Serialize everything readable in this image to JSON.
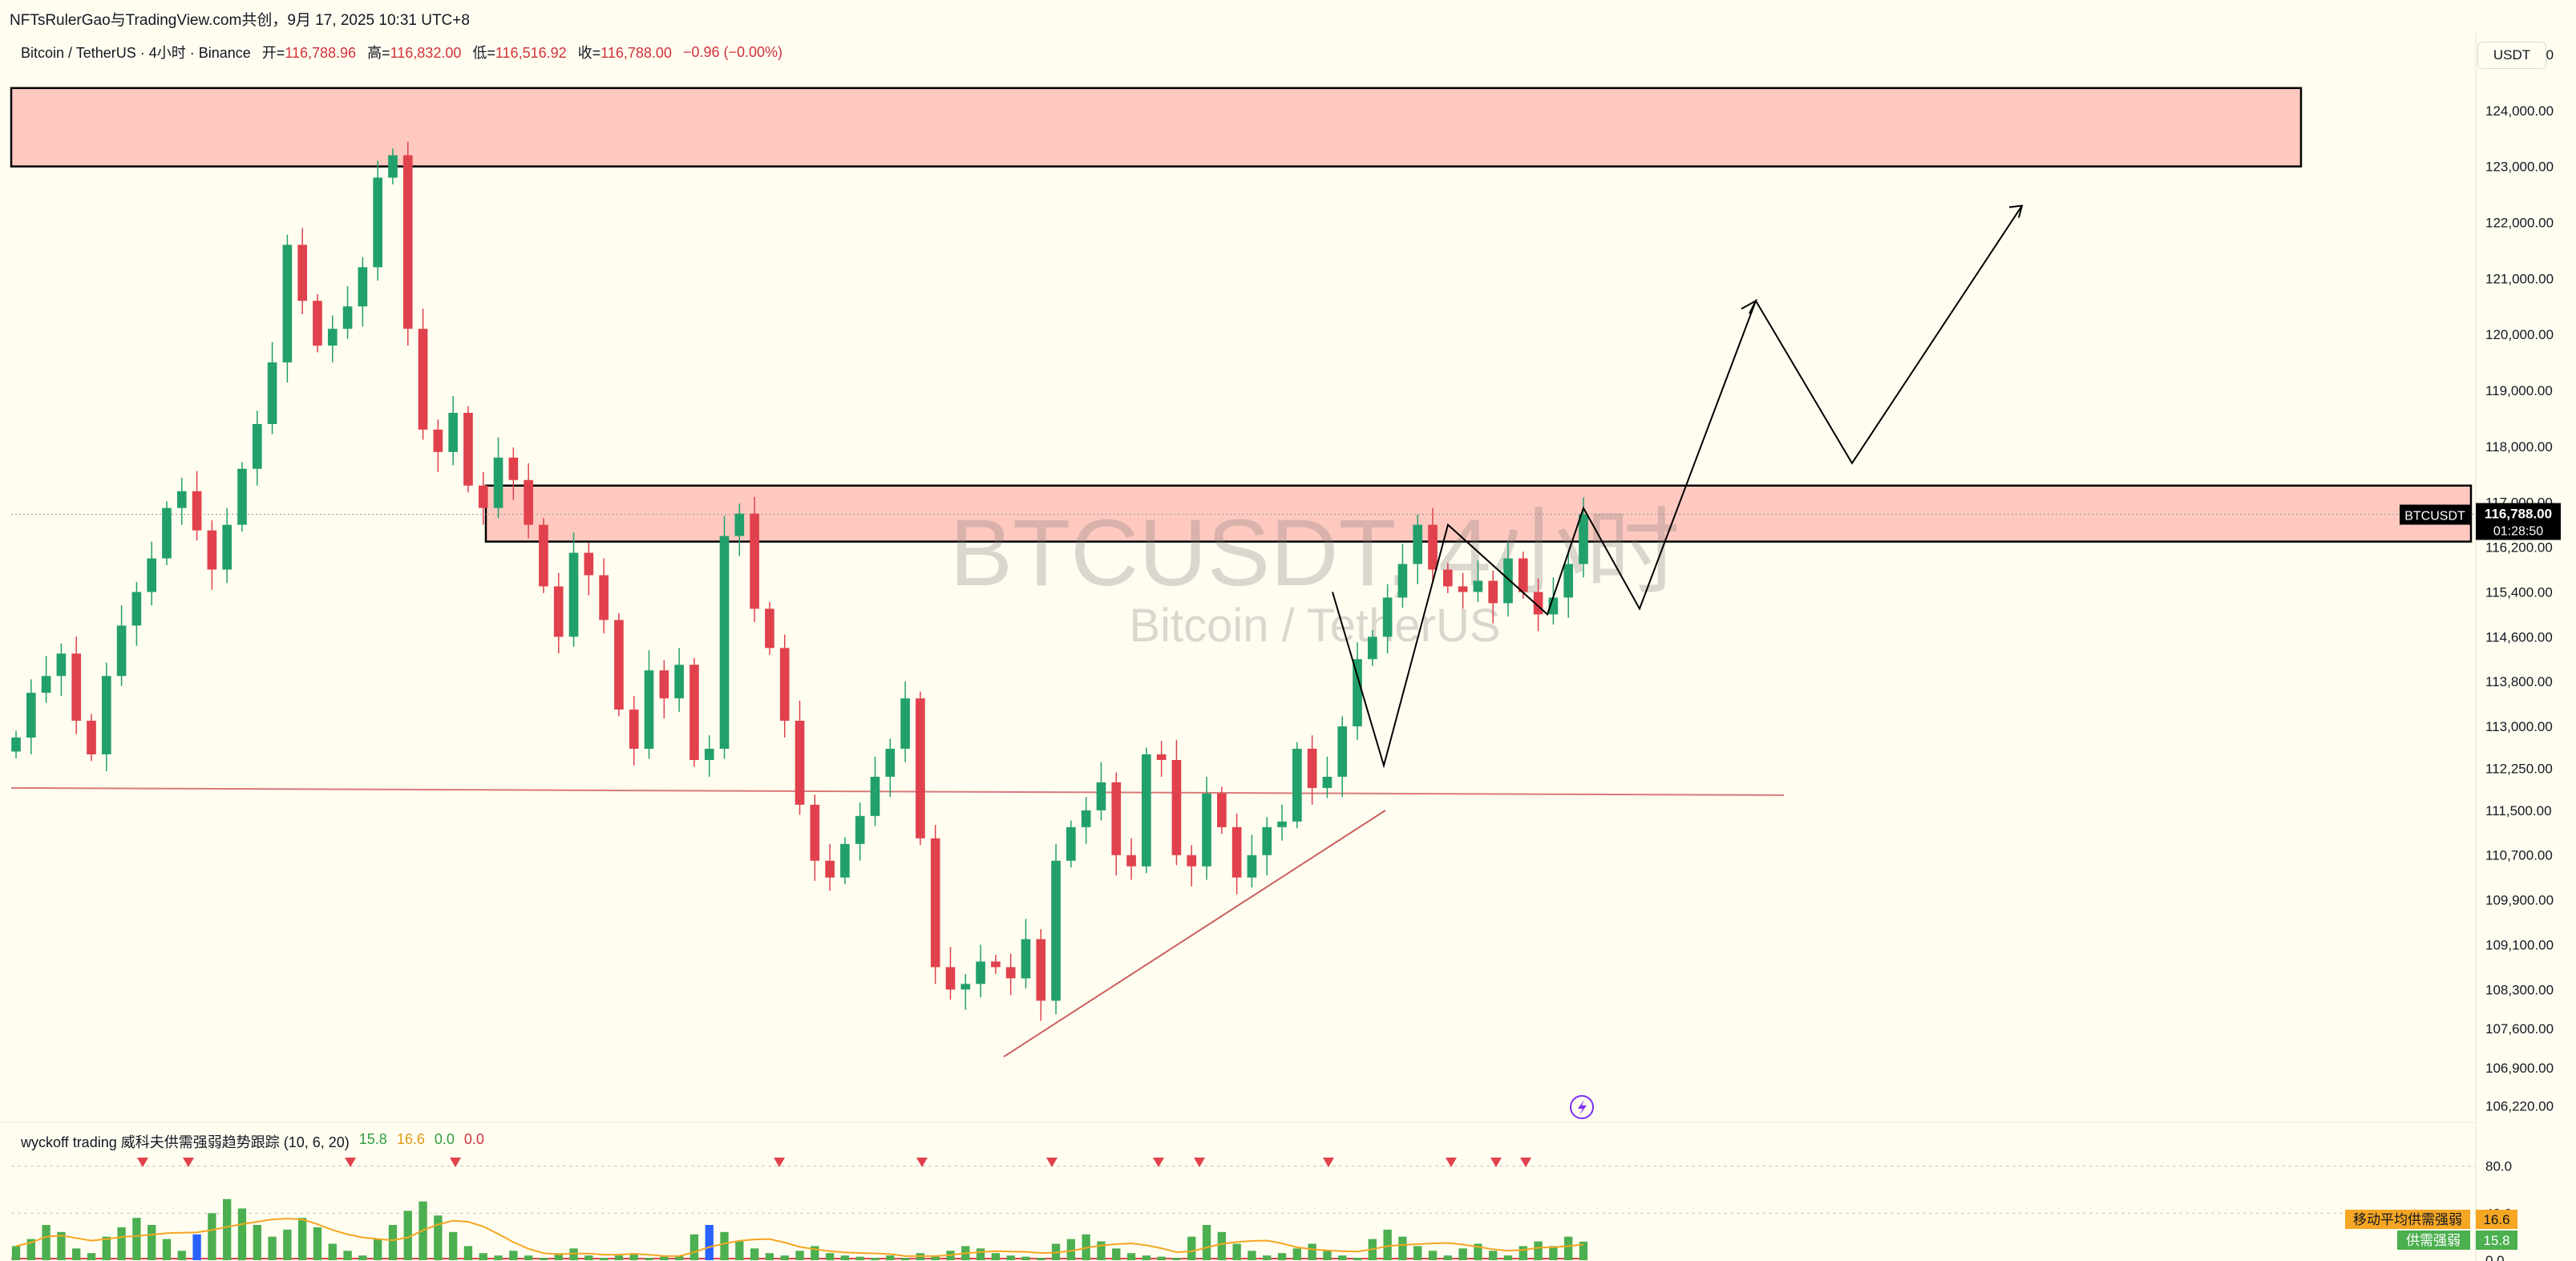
{
  "header": {
    "share_line": "NFTsRulerGao与TradingView.com共创，9月 17, 2025 10:31 UTC+8"
  },
  "legend": {
    "symbol": "Bitcoin / TetherUS · 4小时 · Binance",
    "open_label": "开=",
    "open": "116,788.96",
    "high_label": "高=",
    "high": "116,832.00",
    "low_label": "低=",
    "low": "116,516.92",
    "close_label": "收=",
    "close": "116,788.00",
    "change": "−0.96 (−0.00%)"
  },
  "currency": "USDT",
  "watermark": {
    "ticker": "BTCUSDT, 4小时",
    "name": "Bitcoin / TetherUS"
  },
  "price_badge": {
    "symbol": "BTCUSDT",
    "price": "116,788.00",
    "countdown": "01:28:50"
  },
  "colors": {
    "up": "#22a06b",
    "down": "#e0414c",
    "zone_fill": "#ffc9c0",
    "background": "#fffdf0",
    "volume_bar": "#4caf50",
    "highlight_bar": "#2962ff",
    "ma_line": "#f5a623"
  },
  "indicator": {
    "name": "wyckoff trading 威科夫供需强弱趋势跟踪 (10, 6, 20)",
    "v1": "15.8",
    "v2": "16.6",
    "v3": "0.0",
    "v4": "0.0",
    "badge_ma_label": "移动平均供需强弱",
    "badge_ma_value": "16.6",
    "badge_label": "供需强弱",
    "badge_value": "15.8",
    "axis_ticks": [
      "80.0",
      "40.0",
      "0.0"
    ]
  },
  "chart_data": {
    "type": "line",
    "title": "",
    "xlabel": "",
    "ylabel": "USDT",
    "y_axis_ticks": [
      "125,000.00",
      "124,000.00",
      "123,000.00",
      "122,000.00",
      "121,000.00",
      "120,000.00",
      "119,000.00",
      "118,000.00",
      "117,000.00",
      "116,200.00",
      "115,400.00",
      "114,600.00",
      "113,800.00",
      "113,000.00",
      "112,250.00",
      "111,500.00",
      "110,700.00",
      "109,900.00",
      "109,100.00",
      "108,300.00",
      "107,600.00",
      "106,900.00",
      "106,220.00"
    ],
    "ylim": [
      106000,
      125400
    ],
    "last_price": 116788,
    "series": [
      {
        "close": [
          112800,
          113600,
          113900,
          114300,
          113100,
          112500,
          113900,
          114800,
          115400,
          116000,
          116900,
          117200,
          116500,
          115800,
          116600,
          117600,
          118400,
          119500,
          121600,
          120600,
          119800,
          120100,
          120500,
          121200,
          122800,
          123200,
          120100,
          118300,
          117900,
          118600,
          117300,
          116900,
          117800,
          117400,
          116600,
          115500,
          114600,
          116100,
          115700,
          114900,
          113300,
          112600,
          114000,
          113500,
          114100,
          112400,
          112600,
          116400,
          116800,
          115100,
          114400,
          113100,
          111600,
          110600,
          110300,
          110900,
          111400,
          112100,
          112600,
          113500,
          111000,
          108700,
          108300,
          108400,
          108800,
          108700,
          108500,
          109200,
          108100,
          110600,
          111200,
          111500,
          112000,
          110700,
          110500,
          112500,
          112400,
          110700,
          110500,
          111800,
          111200,
          110300,
          110700,
          111200,
          111300,
          112600,
          111900,
          112100,
          113000,
          114200,
          114600,
          115300,
          115900,
          116600,
          115800,
          115500,
          115400,
          115600,
          115200,
          116000,
          115400,
          115000,
          115300,
          115900,
          116788
        ]
      }
    ],
    "annotations": {
      "resistance_zone": [
        123000,
        124400
      ],
      "supply_zone": [
        116300,
        117300
      ],
      "support_line_price": 111800,
      "projection_path": [
        115400,
        112300,
        116600,
        115000,
        116900,
        115100,
        120600,
        117700,
        122300
      ]
    },
    "indicator_values": [
      12,
      18,
      30,
      24,
      10,
      6,
      20,
      28,
      36,
      30,
      18,
      8,
      22,
      40,
      52,
      44,
      30,
      20,
      26,
      36,
      28,
      14,
      8,
      4,
      18,
      30,
      42,
      50,
      38,
      24,
      12,
      6,
      4,
      8,
      4,
      2,
      6,
      10,
      4,
      2,
      4,
      6,
      2,
      3,
      4,
      22,
      30,
      24,
      16,
      10,
      6,
      4,
      8,
      12,
      6,
      4,
      3,
      2,
      4,
      2,
      6,
      4,
      8,
      12,
      10,
      6,
      4,
      3,
      2,
      14,
      18,
      22,
      16,
      10,
      6,
      4,
      3,
      2,
      20,
      30,
      24,
      14,
      8,
      4,
      6,
      10,
      14,
      8,
      4,
      2,
      18,
      26,
      20,
      12,
      8,
      4,
      10,
      14,
      8,
      4,
      12,
      16,
      12,
      20,
      15.8
    ]
  }
}
